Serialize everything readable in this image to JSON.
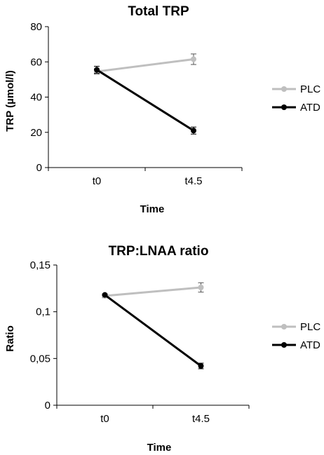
{
  "chart_data": [
    {
      "type": "line",
      "title": "Total TRP",
      "xlabel": "Time",
      "ylabel": "TRP (µmol/l)",
      "categories": [
        "t0",
        "t4.5"
      ],
      "ylim": [
        0,
        80
      ],
      "yticks": [
        "0",
        "20",
        "40",
        "60",
        "80"
      ],
      "grid": false,
      "legend_position": "right",
      "series": [
        {
          "name": "PLC",
          "values": [
            54.5,
            61.5
          ],
          "errors": [
            1.5,
            3
          ],
          "color": "#bfbfbf"
        },
        {
          "name": "ATD",
          "values": [
            55.5,
            21
          ],
          "errors": [
            2,
            2
          ],
          "color": "#000000"
        }
      ]
    },
    {
      "type": "line",
      "title": "TRP:LNAA ratio",
      "xlabel": "Time",
      "ylabel": "Ratio",
      "categories": [
        "t0",
        "t4.5"
      ],
      "ylim": [
        0,
        0.15
      ],
      "yticks": [
        "0",
        "0,05",
        "0,1",
        "0,15"
      ],
      "grid": false,
      "legend_position": "right",
      "series": [
        {
          "name": "PLC",
          "values": [
            0.117,
            0.126
          ],
          "errors": [
            0.002,
            0.005
          ],
          "color": "#bfbfbf"
        },
        {
          "name": "ATD",
          "values": [
            0.118,
            0.042
          ],
          "errors": [
            0.001,
            0.003
          ],
          "color": "#000000"
        }
      ]
    }
  ]
}
